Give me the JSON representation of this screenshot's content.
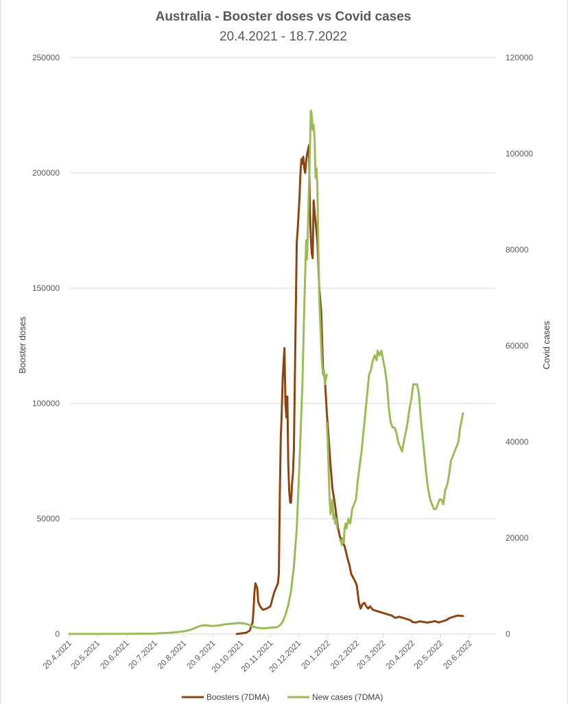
{
  "chart_data": {
    "type": "line",
    "title": "Australia - Booster doses vs Covid cases",
    "subtitle": "20.4.2021 - 18.7.2022",
    "ylabel_left": "Booster doses",
    "ylabel_right": "Covid cases",
    "ylim_left": [
      0,
      250000
    ],
    "ylim_right": [
      0,
      120000
    ],
    "left_ticks": [
      "0",
      "50000",
      "100000",
      "150000",
      "200000",
      "250000"
    ],
    "right_ticks": [
      "0",
      "20000",
      "40000",
      "60000",
      "80000",
      "100000",
      "120000"
    ],
    "x_ticks": [
      "20.4.2021",
      "20.5.2021",
      "20.6.2021",
      "20.7.2021",
      "20.8.2021",
      "20.9.2021",
      "20.10.2021",
      "20.11.2021",
      "20.12.2021",
      "20.1.2022",
      "20.2.2022",
      "20.3.2022",
      "20.4.2022",
      "20.5.2022",
      "20.6.2022"
    ],
    "x_range_days": [
      0,
      454
    ],
    "grid": "horizontal",
    "legend_position": "bottom",
    "series": [
      {
        "name": "Boosters (7DMA)",
        "axis": "left",
        "color": "#8B4513",
        "points": [
          [
            178,
            0
          ],
          [
            182,
            200
          ],
          [
            188,
            500
          ],
          [
            192,
            1500
          ],
          [
            195,
            5000
          ],
          [
            196,
            10000
          ],
          [
            197,
            18000
          ],
          [
            198,
            22000
          ],
          [
            200,
            20000
          ],
          [
            201,
            14000
          ],
          [
            203,
            12000
          ],
          [
            206,
            10500
          ],
          [
            210,
            11000
          ],
          [
            214,
            12000
          ],
          [
            216,
            15000
          ],
          [
            218,
            18000
          ],
          [
            220,
            20000
          ],
          [
            222,
            22000
          ],
          [
            223,
            26000
          ],
          [
            224,
            60000
          ],
          [
            225,
            85000
          ],
          [
            226,
            95000
          ],
          [
            227,
            110000
          ],
          [
            228,
            118000
          ],
          [
            229,
            124000
          ],
          [
            230,
            100000
          ],
          [
            231,
            94000
          ],
          [
            232,
            103000
          ],
          [
            233,
            74000
          ],
          [
            234,
            62000
          ],
          [
            235,
            57000
          ],
          [
            236,
            57000
          ],
          [
            237,
            65000
          ],
          [
            238,
            70000
          ],
          [
            239,
            80000
          ],
          [
            240,
            110000
          ],
          [
            241,
            140000
          ],
          [
            242,
            170000
          ],
          [
            243,
            175000
          ],
          [
            245,
            190000
          ],
          [
            246,
            200000
          ],
          [
            247,
            206000
          ],
          [
            248,
            204000
          ],
          [
            249,
            207000
          ],
          [
            250,
            202000
          ],
          [
            251,
            200000
          ],
          [
            252,
            205000
          ],
          [
            253,
            208000
          ],
          [
            254,
            210000
          ],
          [
            255,
            212000
          ],
          [
            256,
            184000
          ],
          [
            257,
            172000
          ],
          [
            258,
            165000
          ],
          [
            259,
            163000
          ],
          [
            260,
            188000
          ],
          [
            261,
            183000
          ],
          [
            262,
            179000
          ],
          [
            264,
            170000
          ],
          [
            266,
            150000
          ],
          [
            268,
            140000
          ],
          [
            270,
            115000
          ],
          [
            272,
            110000
          ],
          [
            274,
            96000
          ],
          [
            276,
            85000
          ],
          [
            278,
            73000
          ],
          [
            280,
            63000
          ],
          [
            282,
            58000
          ],
          [
            284,
            52000
          ],
          [
            286,
            46000
          ],
          [
            288,
            42000
          ],
          [
            290,
            41000
          ],
          [
            293,
            38000
          ],
          [
            296,
            33000
          ],
          [
            298,
            30000
          ],
          [
            300,
            26000
          ],
          [
            304,
            23000
          ],
          [
            306,
            21000
          ],
          [
            308,
            14000
          ],
          [
            310,
            11000
          ],
          [
            312,
            13000
          ],
          [
            314,
            13500
          ],
          [
            316,
            12000
          ],
          [
            318,
            11000
          ],
          [
            320,
            12000
          ],
          [
            323,
            10500
          ],
          [
            327,
            10000
          ],
          [
            331,
            9500
          ],
          [
            335,
            9000
          ],
          [
            339,
            8500
          ],
          [
            343,
            8000
          ],
          [
            347,
            7000
          ],
          [
            351,
            7500
          ],
          [
            355,
            7000
          ],
          [
            359,
            6500
          ],
          [
            363,
            6000
          ],
          [
            365,
            5200
          ],
          [
            369,
            5000
          ],
          [
            373,
            5500
          ],
          [
            377,
            5200
          ],
          [
            381,
            5000
          ],
          [
            385,
            5200
          ],
          [
            389,
            5600
          ],
          [
            393,
            5000
          ],
          [
            397,
            5500
          ],
          [
            401,
            6000
          ],
          [
            405,
            7000
          ],
          [
            409,
            7500
          ],
          [
            413,
            8000
          ],
          [
            419,
            7800
          ]
        ]
      },
      {
        "name": "New cases (7DMA)",
        "axis": "right",
        "color": "#9BBB59",
        "points": [
          [
            0,
            20
          ],
          [
            30,
            20
          ],
          [
            60,
            30
          ],
          [
            90,
            80
          ],
          [
            100,
            200
          ],
          [
            110,
            300
          ],
          [
            120,
            500
          ],
          [
            128,
            800
          ],
          [
            133,
            1200
          ],
          [
            138,
            1600
          ],
          [
            142,
            1800
          ],
          [
            146,
            1800
          ],
          [
            150,
            1700
          ],
          [
            155,
            1700
          ],
          [
            160,
            1800
          ],
          [
            165,
            2000
          ],
          [
            170,
            2100
          ],
          [
            176,
            2200
          ],
          [
            180,
            2300
          ],
          [
            186,
            2200
          ],
          [
            190,
            2000
          ],
          [
            196,
            1500
          ],
          [
            200,
            1300
          ],
          [
            206,
            1200
          ],
          [
            210,
            1250
          ],
          [
            214,
            1300
          ],
          [
            218,
            1400
          ],
          [
            221,
            1400
          ],
          [
            224,
            1800
          ],
          [
            227,
            2500
          ],
          [
            230,
            4000
          ],
          [
            233,
            6000
          ],
          [
            236,
            9000
          ],
          [
            239,
            14000
          ],
          [
            242,
            22000
          ],
          [
            245,
            36000
          ],
          [
            248,
            52000
          ],
          [
            250,
            68000
          ],
          [
            252,
            82000
          ],
          [
            253,
            78000
          ],
          [
            254,
            85000
          ],
          [
            255,
            93000
          ],
          [
            256,
            100000
          ],
          [
            257,
            109000
          ],
          [
            258,
            108000
          ],
          [
            259,
            105000
          ],
          [
            260,
            106000
          ],
          [
            261,
            103000
          ],
          [
            262,
            95000
          ],
          [
            263,
            97000
          ],
          [
            264,
            93000
          ],
          [
            265,
            80000
          ],
          [
            266,
            70000
          ],
          [
            267,
            65000
          ],
          [
            268,
            60000
          ],
          [
            269,
            56000
          ],
          [
            270,
            54000
          ],
          [
            271,
            55000
          ],
          [
            272,
            52000
          ],
          [
            273,
            53000
          ],
          [
            274,
            54000
          ]
        ]
      },
      {
        "name": "New cases (7DMA)",
        "axis": "right",
        "color": "#9BBB59",
        "segment": 2,
        "points": [
          [
            274,
            44000
          ],
          [
            275,
            40000
          ],
          [
            276,
            34000
          ],
          [
            277,
            28000
          ],
          [
            278,
            25000
          ],
          [
            279,
            27000
          ],
          [
            280,
            28000
          ],
          [
            281,
            24000
          ],
          [
            282,
            25000
          ],
          [
            283,
            23000
          ],
          [
            284,
            24000
          ],
          [
            285,
            22000
          ]
        ]
      },
      {
        "name": "New cases (7DMA)",
        "axis": "right",
        "color": "#9BBB59",
        "segment": 3,
        "points": [
          [
            288,
            19500
          ],
          [
            289,
            19500
          ],
          [
            290,
            18500
          ],
          [
            291,
            20000
          ],
          [
            292,
            19000
          ],
          [
            293,
            22000
          ],
          [
            294,
            23000
          ],
          [
            295,
            22000
          ],
          [
            297,
            24000
          ],
          [
            299,
            23000
          ],
          [
            301,
            26000
          ],
          [
            303,
            27000
          ],
          [
            305,
            28000
          ],
          [
            307,
            32000
          ],
          [
            309,
            35000
          ],
          [
            311,
            38000
          ],
          [
            313,
            42000
          ],
          [
            315,
            46000
          ],
          [
            317,
            50000
          ],
          [
            319,
            54000
          ],
          [
            321,
            55000
          ],
          [
            323,
            57000
          ],
          [
            325,
            58000
          ],
          [
            327,
            57000
          ],
          [
            328,
            59000
          ],
          [
            330,
            58000
          ],
          [
            332,
            59000
          ],
          [
            334,
            57000
          ],
          [
            336,
            55000
          ],
          [
            338,
            52000
          ],
          [
            340,
            47000
          ],
          [
            342,
            44000
          ],
          [
            344,
            43000
          ],
          [
            346,
            43000
          ],
          [
            348,
            42000
          ],
          [
            350,
            40000
          ],
          [
            352,
            39000
          ],
          [
            354,
            38000
          ],
          [
            356,
            40000
          ],
          [
            358,
            42000
          ],
          [
            360,
            44000
          ],
          [
            362,
            47000
          ],
          [
            364,
            49000
          ],
          [
            366,
            52000
          ],
          [
            368,
            52000
          ],
          [
            370,
            52000
          ],
          [
            372,
            50000
          ],
          [
            374,
            45000
          ],
          [
            376,
            41000
          ],
          [
            378,
            37000
          ],
          [
            380,
            33000
          ],
          [
            382,
            30000
          ],
          [
            384,
            28000
          ],
          [
            386,
            27000
          ],
          [
            388,
            26000
          ],
          [
            390,
            26000
          ],
          [
            392,
            27000
          ],
          [
            394,
            28000
          ],
          [
            396,
            28000
          ],
          [
            398,
            27000
          ],
          [
            400,
            30000
          ],
          [
            402,
            31000
          ],
          [
            404,
            33000
          ],
          [
            406,
            36000
          ],
          [
            408,
            37000
          ],
          [
            410,
            38000
          ],
          [
            412,
            39000
          ],
          [
            414,
            40000
          ],
          [
            416,
            43000
          ],
          [
            419,
            46000
          ]
        ]
      }
    ]
  }
}
